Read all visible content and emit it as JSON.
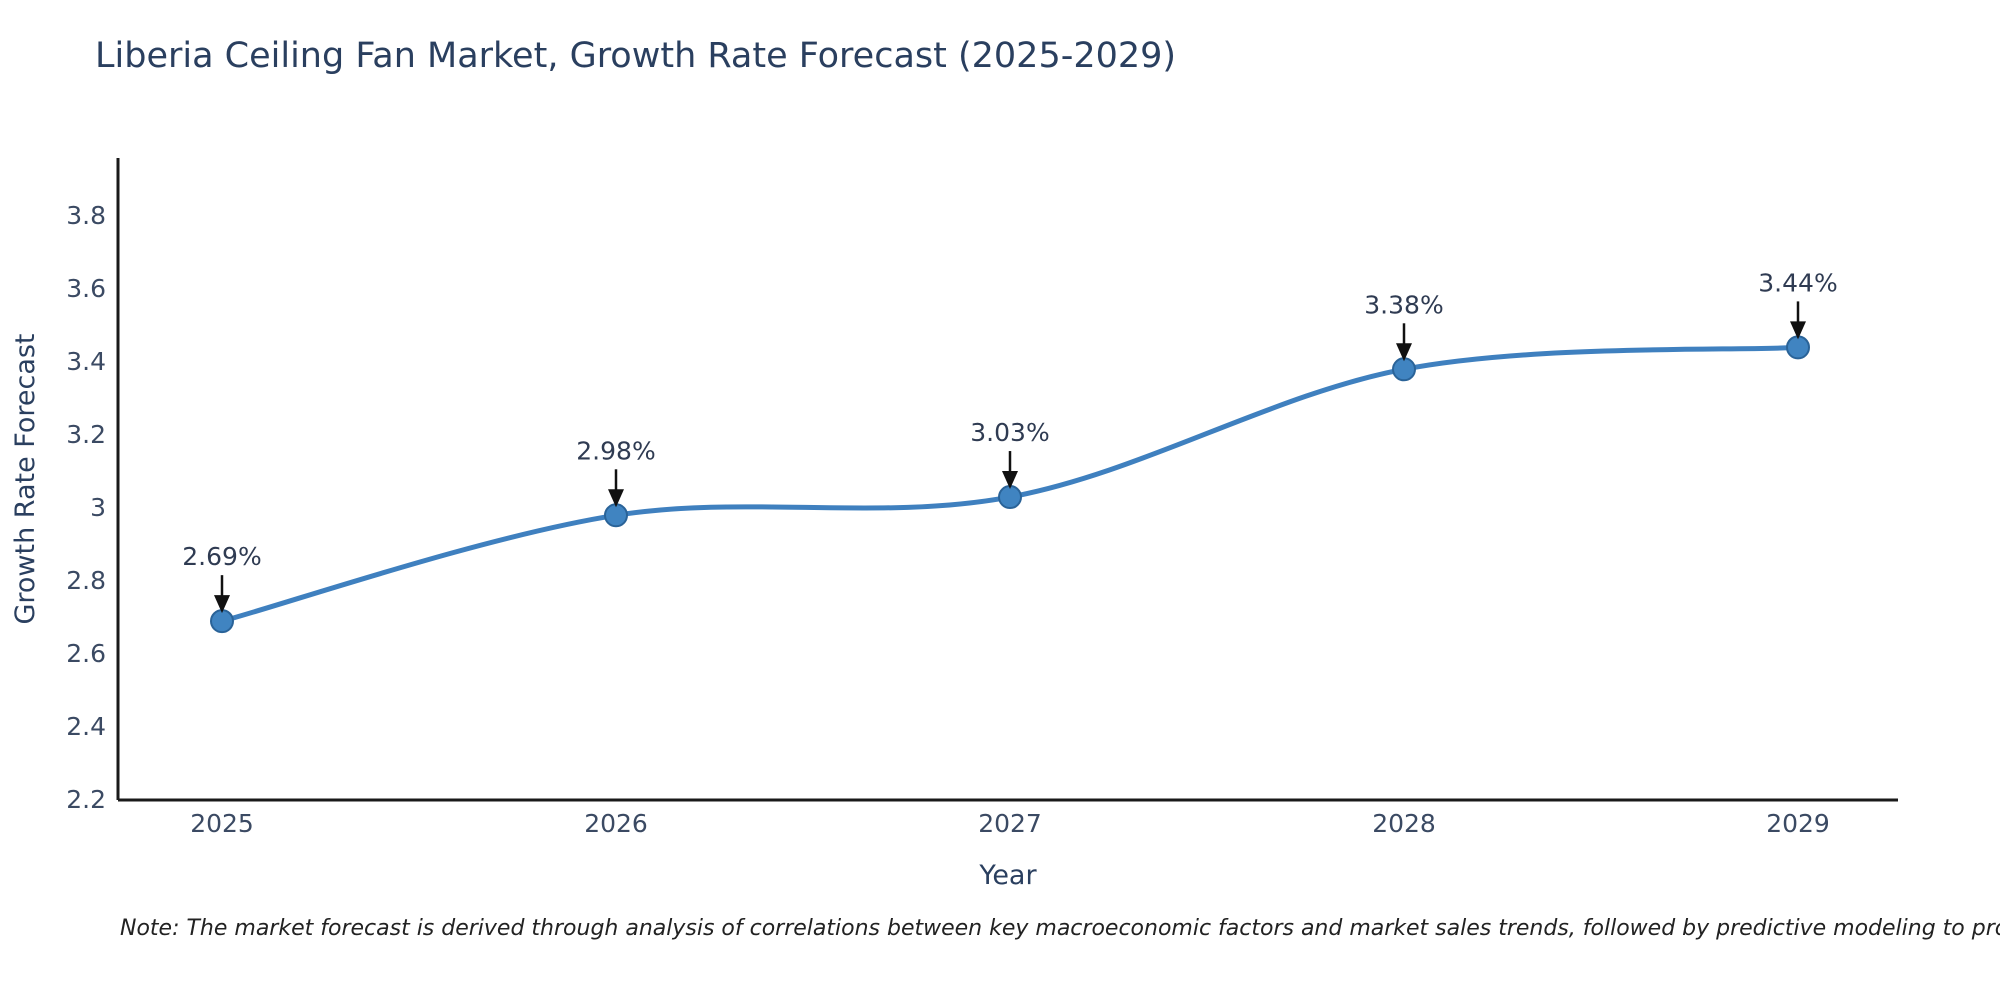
{
  "title": "Liberia Ceiling Fan Market, Growth Rate Forecast (2025-2029)",
  "note": "Note: The market forecast is derived through analysis of correlations between key macroeconomic factors and market sales trends, followed by predictive modeling to project future sales",
  "chart_data": {
    "type": "line",
    "line_shape": "spline",
    "x": [
      2025,
      2026,
      2027,
      2028,
      2029
    ],
    "x_tick_labels": [
      "2025",
      "2026",
      "2027",
      "2028",
      "2029"
    ],
    "series": [
      {
        "name": "Growth Rate Forecast",
        "values": [
          2.69,
          2.98,
          3.03,
          3.38,
          3.44
        ]
      }
    ],
    "point_labels": [
      "2.69%",
      "2.98%",
      "3.03%",
      "3.38%",
      "3.44%"
    ],
    "xlabel": "Year",
    "ylabel": "Growth Rate Forecast",
    "yticks": [
      2.2,
      2.4,
      2.6,
      2.8,
      3,
      3.2,
      3.4,
      3.6,
      3.8
    ],
    "ytick_labels": [
      "2.2",
      "2.4",
      "2.6",
      "2.8",
      "3",
      "3.2",
      "3.4",
      "3.6",
      "3.8"
    ],
    "ylim": [
      2.2,
      3.85
    ],
    "grid": false,
    "legend": "none",
    "annotations_have_arrows": true,
    "colors": {
      "line": "#3f80bf",
      "marker": "#4084c1",
      "marker_edge": "#2a6398",
      "axis": "#1a1a1a",
      "tick_text": "#3b4a63",
      "axis_title_text": "#2a3f5f",
      "title_text": "#2a3f5f",
      "annotation_text": "#2f3b52",
      "arrow": "#111111",
      "note_text": "#222222",
      "background": "#ffffff"
    }
  }
}
